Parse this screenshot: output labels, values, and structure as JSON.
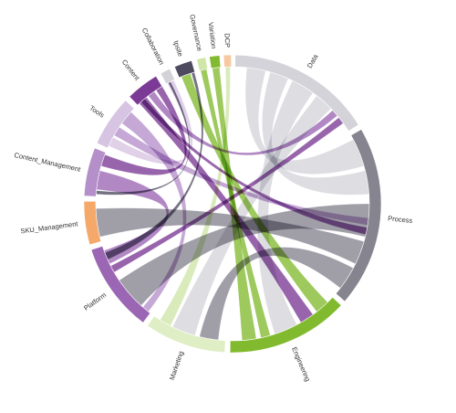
{
  "diagram": {
    "type": "chord",
    "groups": [
      {
        "id": "data",
        "label": "Data",
        "color": "#d4d3da",
        "start_deg": 1,
        "end_deg": 58
      },
      {
        "id": "process",
        "label": "Process",
        "color": "#85848f",
        "start_deg": 60,
        "end_deg": 131
      },
      {
        "id": "engineering",
        "label": "Engineering",
        "color": "#82ba2f",
        "start_deg": 133,
        "end_deg": 181
      },
      {
        "id": "marketing",
        "label": "Marketing",
        "color": "#dfeec4",
        "start_deg": 183,
        "end_deg": 215
      },
      {
        "id": "platform",
        "label": "Platform",
        "color": "#9b66b3",
        "start_deg": 217,
        "end_deg": 252
      },
      {
        "id": "sku_management",
        "label": "SKU_Management",
        "color": "#f4a96a",
        "start_deg": 254,
        "end_deg": 271
      },
      {
        "id": "content_management",
        "label": "Content_Management",
        "color": "#b58fc9",
        "start_deg": 273,
        "end_deg": 292
      },
      {
        "id": "tools",
        "label": "Tools",
        "color": "#d7c4e3",
        "start_deg": 294,
        "end_deg": 314
      },
      {
        "id": "content",
        "label": "Content",
        "color": "#7b3a95",
        "start_deg": 316,
        "end_deg": 329
      },
      {
        "id": "collaboration",
        "label": "Collaboration",
        "color": "#d3d2d9",
        "start_deg": 331,
        "end_deg": 335
      },
      {
        "id": "ipsite",
        "label": "Ipsite",
        "color": "#4e4a60",
        "start_deg": 337,
        "end_deg": 344
      },
      {
        "id": "governance",
        "label": "Governance",
        "color": "#cfe6a8",
        "start_deg": 346,
        "end_deg": 349.5
      },
      {
        "id": "variation",
        "label": "Variation",
        "color": "#82ba2f",
        "start_deg": 351,
        "end_deg": 355
      },
      {
        "id": "dcp",
        "label": "DCP",
        "color": "#f8c8a0",
        "start_deg": 356.5,
        "end_deg": 359.5
      }
    ],
    "ribbons": [
      {
        "source": "data",
        "target": "process",
        "s": [
          6,
          14
        ],
        "t": [
          62,
          74
        ],
        "color": "#d4d3da"
      },
      {
        "source": "data",
        "target": "process",
        "s": [
          16,
          24
        ],
        "t": [
          76,
          86
        ],
        "color": "#d4d3da"
      },
      {
        "source": "data",
        "target": "engineering",
        "s": [
          26,
          36
        ],
        "t": [
          152,
          162
        ],
        "color": "#d4d3da"
      },
      {
        "source": "data",
        "target": "marketing",
        "s": [
          38,
          46
        ],
        "t": [
          196,
          206
        ],
        "color": "#d4d3da"
      },
      {
        "source": "data",
        "target": "content",
        "s": [
          47,
          50
        ],
        "t": [
          322,
          325
        ],
        "color": "#9b66b3"
      },
      {
        "source": "data",
        "target": "platform",
        "s": [
          51,
          54
        ],
        "t": [
          240,
          243
        ],
        "color": "#7b3a95"
      },
      {
        "source": "process",
        "target": "platform",
        "s": [
          90,
          104
        ],
        "t": [
          222,
          236
        ],
        "color": "#85848f"
      },
      {
        "source": "process",
        "target": "sku_management",
        "s": [
          106,
          116
        ],
        "t": [
          256,
          268
        ],
        "color": "#85848f"
      },
      {
        "source": "process",
        "target": "marketing",
        "s": [
          118,
          128
        ],
        "t": [
          186,
          194
        ],
        "color": "#85848f"
      },
      {
        "source": "process",
        "target": "tools",
        "s": [
          96,
          99
        ],
        "t": [
          300,
          304
        ],
        "color": "#b58fc9"
      },
      {
        "source": "engineering",
        "target": "ipsite",
        "s": [
          136,
          142
        ],
        "t": [
          338,
          342
        ],
        "color": "#82ba2f"
      },
      {
        "source": "engineering",
        "target": "governance",
        "s": [
          164,
          168
        ],
        "t": [
          346.5,
          349
        ],
        "color": "#82ba2f"
      },
      {
        "source": "engineering",
        "target": "variation",
        "s": [
          170,
          176
        ],
        "t": [
          351.5,
          354.5
        ],
        "color": "#82ba2f"
      },
      {
        "source": "engineering",
        "target": "content",
        "s": [
          144,
          150
        ],
        "t": [
          317,
          321
        ],
        "color": "#7b3a95"
      },
      {
        "source": "marketing",
        "target": "dcp",
        "s": [
          207,
          212
        ],
        "t": [
          357,
          359
        ],
        "color": "#cfe6a8"
      },
      {
        "source": "platform",
        "target": "content_management",
        "s": [
          244,
          250
        ],
        "t": [
          276,
          284
        ],
        "color": "#9b66b3"
      },
      {
        "source": "platform",
        "target": "tools",
        "s": [
          218,
          221
        ],
        "t": [
          306,
          312
        ],
        "color": "#b58fc9"
      },
      {
        "source": "content_management",
        "target": "content",
        "s": [
          286,
          291
        ],
        "t": [
          326,
          329
        ],
        "color": "#7b3a95"
      },
      {
        "source": "tools",
        "target": "collaboration",
        "s": [
          295,
          299
        ],
        "t": [
          331.5,
          334.5
        ],
        "color": "#d7c4e3"
      },
      {
        "source": "content",
        "target": "process",
        "s": [
          318,
          320
        ],
        "t": [
          100,
          103
        ],
        "color": "#7b3a95"
      },
      {
        "source": "ipsite",
        "target": "platform",
        "s": [
          342.5,
          343.8
        ],
        "t": [
          246,
          249
        ],
        "color": "#4e4a60"
      },
      {
        "source": "collaboration",
        "target": "content_management",
        "s": [
          332,
          333
        ],
        "t": [
          274,
          275.5
        ],
        "color": "#4e4a60"
      }
    ]
  }
}
